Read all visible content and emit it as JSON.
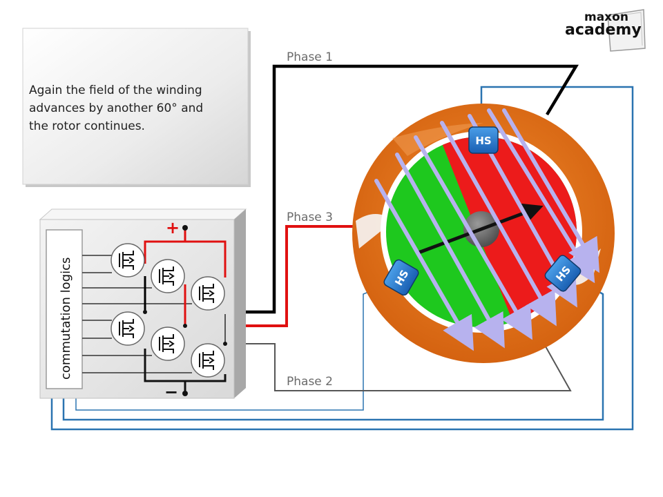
{
  "logo": {
    "line1": "maxon",
    "line2": "academy"
  },
  "note": {
    "lines": [
      "Again  the  field  of  the  winding",
      "advances  by  another  60°  and",
      "the rotor continues."
    ]
  },
  "labels": {
    "phase1": "Phase 1",
    "phase2": "Phase 2",
    "phase3": "Phase 3"
  },
  "controller": {
    "logic_label": "commutation logics",
    "plus": "+",
    "minus": "−"
  },
  "sensors": {
    "label": "HS"
  },
  "colors": {
    "stator": "#e2761e",
    "rotor_south": "#1ec81e",
    "rotor_north": "#ec1b1b",
    "phase1_wire": "#000000",
    "phase2_wire": "#555555",
    "phase3_wire": "#e01010",
    "sensor_wire": "#2a73b0",
    "sensor_block": "#1f6fc8",
    "field_arrows": "#b7b2ee"
  }
}
